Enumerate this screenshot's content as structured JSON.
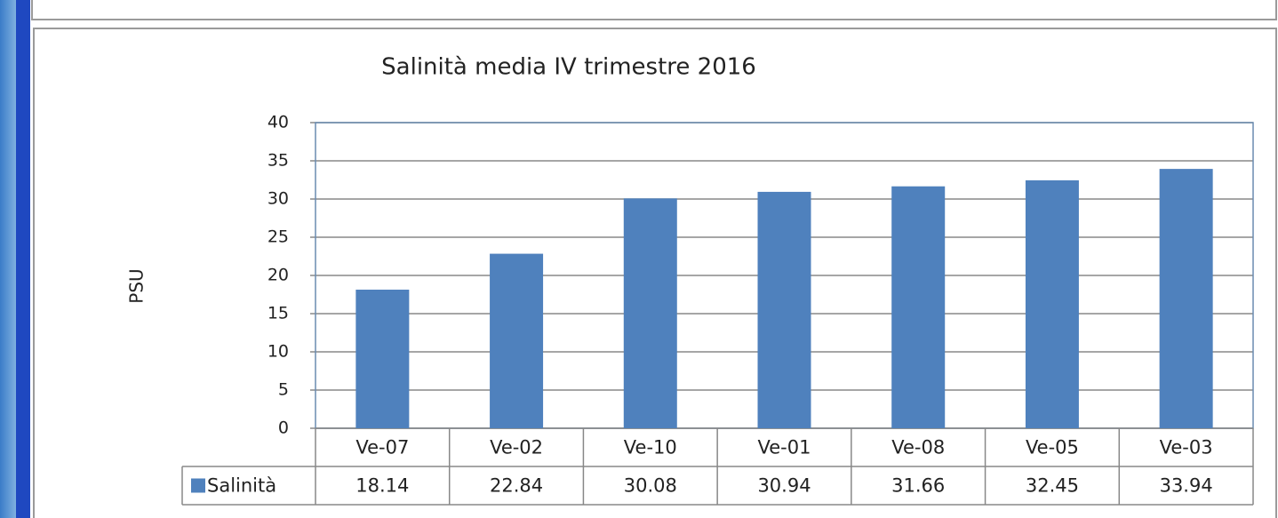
{
  "chart_data": {
    "type": "bar",
    "title": "Salinità media IV trimestre 2016",
    "y_label": "PSU",
    "categories": [
      "Ve-07",
      "Ve-02",
      "Ve-10",
      "Ve-01",
      "Ve-08",
      "Ve-05",
      "Ve-03"
    ],
    "series": [
      {
        "name": "Salinità",
        "color": "#4f81bd",
        "values": [
          18.14,
          22.84,
          30.08,
          30.94,
          31.66,
          32.45,
          33.94
        ]
      }
    ],
    "ylim": [
      0,
      40
    ],
    "yticks": [
      0,
      5,
      10,
      15,
      20,
      25,
      30,
      35,
      40
    ],
    "grid": true
  }
}
